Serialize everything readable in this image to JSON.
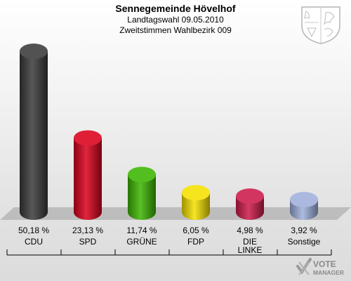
{
  "header": {
    "title": "Sennegemeinde Hövelhof",
    "subtitle1": "Landtagswahl 09.05.2010",
    "subtitle2": "Zweitstimmen Wahlbezirk 009"
  },
  "watermark": {
    "line1": "VOTE",
    "line2": "MANAGER"
  },
  "emblem": {
    "icon": "coat-of-arms-icon"
  },
  "chart_data": {
    "type": "bar",
    "categories": [
      "CDU",
      "SPD",
      "GRÜNE",
      "FDP",
      "DIE LINKE",
      "Sonstige"
    ],
    "values": [
      50.18,
      23.13,
      11.74,
      6.05,
      4.98,
      3.92
    ],
    "value_labels": [
      "50,18 %",
      "23,13 %",
      "11,74 %",
      "6,05 %",
      "4,98 %",
      "3,92 %"
    ],
    "colors": [
      "#3a3a3a",
      "#d9001b",
      "#3cb500",
      "#f5e000",
      "#cc1a4a",
      "#9fb0dc"
    ],
    "ylim": [
      0,
      50.18
    ],
    "grid": false,
    "legend": "none"
  }
}
